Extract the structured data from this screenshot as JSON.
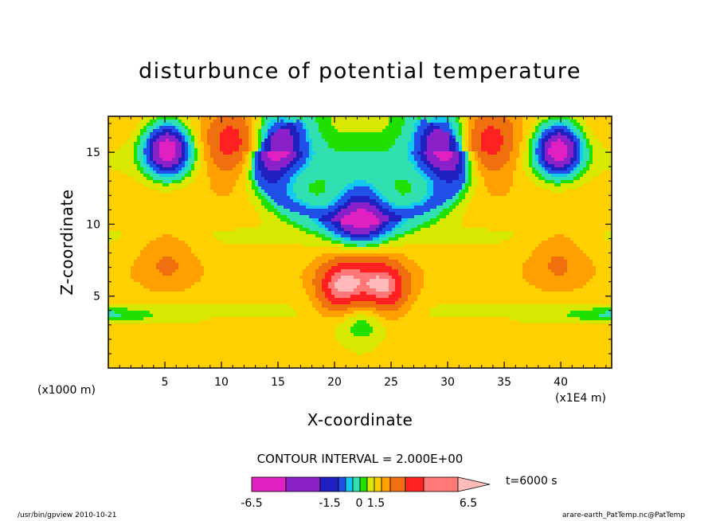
{
  "chart_data": {
    "type": "heatmap",
    "title": "disturbunce of potential temperature",
    "xlabel": "X-coordinate",
    "ylabel": "Z-coordinate",
    "x_unit_left": "(x1000 m)",
    "x_unit_right": "(x1E4 m)",
    "xlim": [
      0,
      44.5
    ],
    "ylim": [
      0,
      17.5
    ],
    "x_ticks": [
      5,
      10,
      15,
      20,
      25,
      30,
      35,
      40
    ],
    "y_ticks": [
      5,
      10,
      15
    ],
    "x_tick_labels": [
      "5",
      "10",
      "15",
      "20",
      "25",
      "30",
      "35",
      "40"
    ],
    "y_tick_labels": [
      "5",
      "10",
      "15"
    ],
    "contour_interval": "CONTOUR INTERVAL = 2.000E+00",
    "time_label": "t=6000 s",
    "colorbar": {
      "colors": [
        "#e020c0",
        "#8a20c8",
        "#2020c0",
        "#2050e8",
        "#10c8f0",
        "#30e0b0",
        "#20e000",
        "#d8e800",
        "#ffd000",
        "#ffa000",
        "#f07010",
        "#ff2020",
        "#ff7878",
        "#ffbbbb"
      ],
      "tick_labels": [
        "-6.5",
        "-1.5",
        "0",
        "1.5",
        "6.5"
      ]
    },
    "field_features": [
      {
        "x": 5.2,
        "z": 15.2,
        "value": -6.5
      },
      {
        "x": 39.8,
        "z": 15.2,
        "value": -6.5
      },
      {
        "x": 11.0,
        "z": 15.5,
        "value": 5.0
      },
      {
        "x": 33.6,
        "z": 15.5,
        "value": 5.0
      },
      {
        "x": 15.2,
        "z": 15.8,
        "value": -4.0
      },
      {
        "x": 29.4,
        "z": 15.8,
        "value": -4.0
      },
      {
        "x": 22.3,
        "z": 10.5,
        "value": -4.0
      },
      {
        "x": 5.2,
        "z": 7.5,
        "value": 2.5
      },
      {
        "x": 39.8,
        "z": 7.5,
        "value": 2.5
      },
      {
        "x": 22.3,
        "z": 6.3,
        "value": 3.5
      },
      {
        "x": 20.5,
        "z": 5.5,
        "value": 6.0
      },
      {
        "x": 24.5,
        "z": 5.5,
        "value": 6.0
      },
      {
        "x": 22.3,
        "z": 3.5,
        "value": -1.0
      }
    ]
  },
  "footer": {
    "left": "/usr/bin/gpview   2010-10-21",
    "right": "arare-earth_PatTemp.nc@PatTemp"
  }
}
